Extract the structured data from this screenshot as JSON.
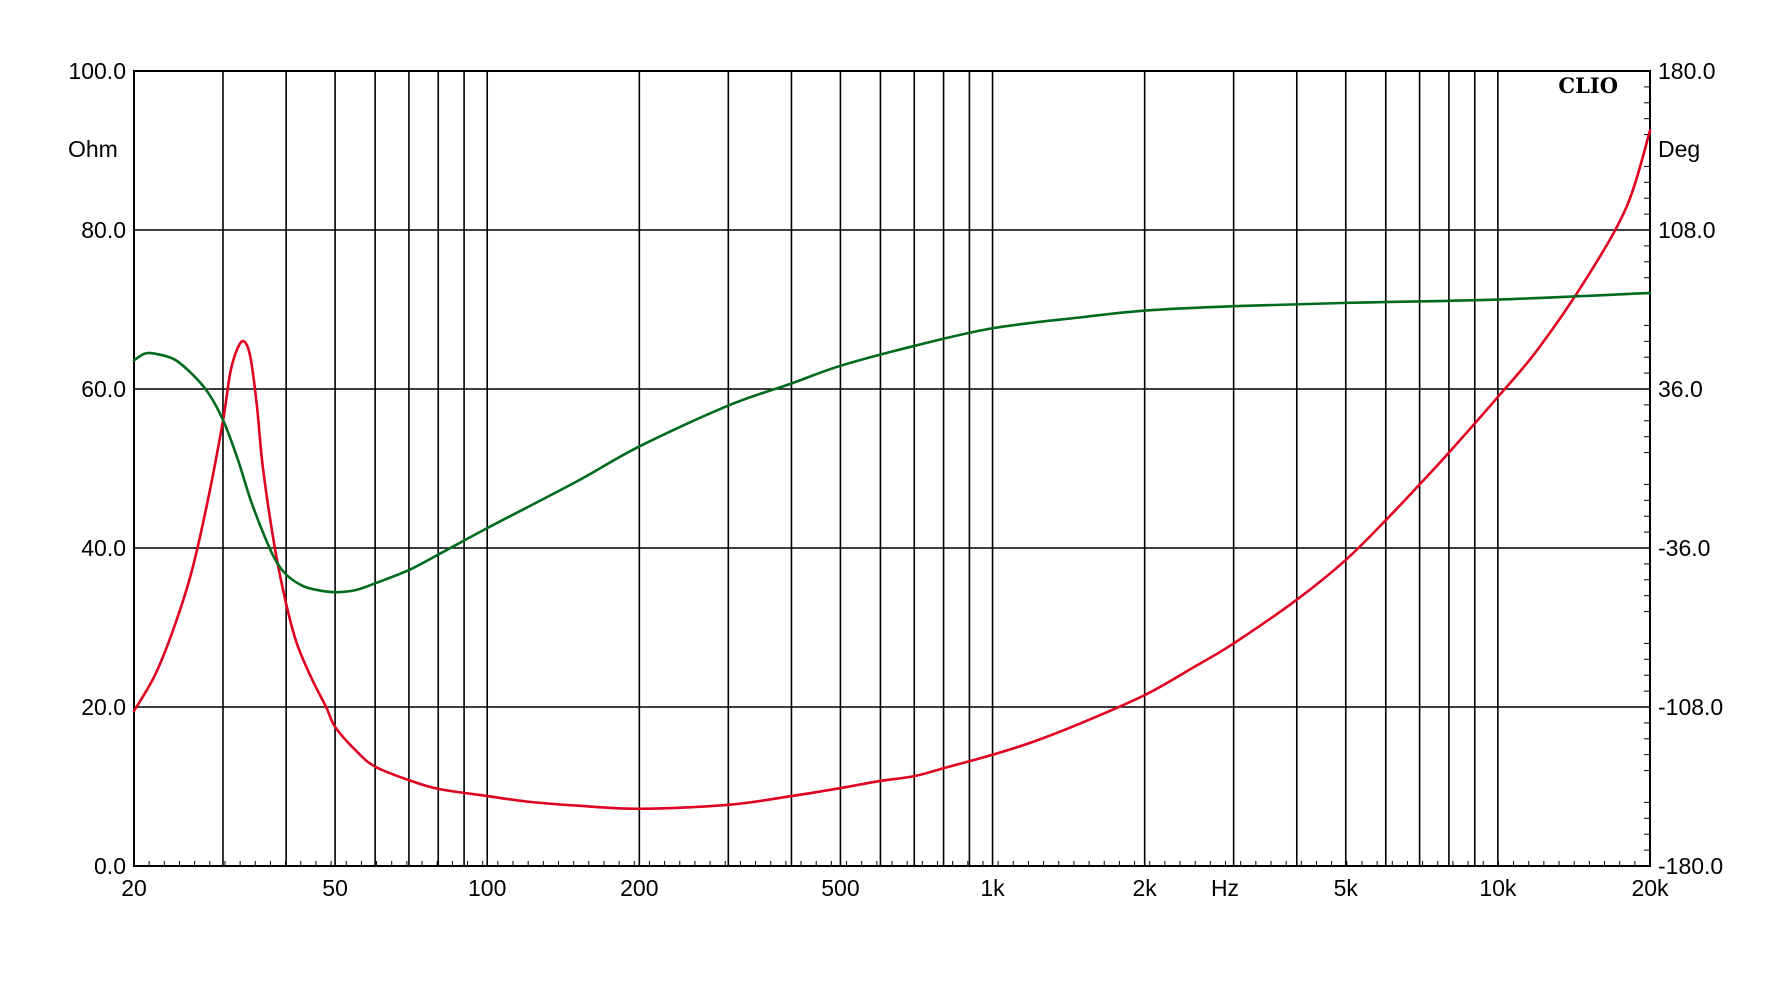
{
  "brand": {
    "text": "CLIO"
  },
  "axes": {
    "left_unit": "Ohm",
    "right_unit": "Deg",
    "x_unit": "Hz",
    "left_ticks": [
      "0.0",
      "20.0",
      "40.0",
      "60.0",
      "80.0",
      "100.0"
    ],
    "right_ticks": [
      "-180.0",
      "-108.0",
      "-36.0",
      "36.0",
      "108.0",
      "180.0"
    ],
    "x_ticks": [
      "20",
      "50",
      "100",
      "200",
      "500",
      "1k",
      "2k",
      "5k",
      "10k",
      "20k"
    ]
  },
  "colors": {
    "impedance": "#e00020",
    "phase": "#006a1e",
    "grid": "#000000"
  },
  "chart_data": {
    "type": "line",
    "x_scale": "log",
    "xlim": [
      20,
      20000
    ],
    "ylim_left": [
      0,
      100
    ],
    "ylim_right": [
      -180,
      180
    ],
    "grid": true,
    "series": [
      {
        "axis": "left",
        "color": "#e00020",
        "x": [
          20,
          22,
          24,
          26,
          28,
          30,
          31,
          32,
          33,
          34,
          35,
          36,
          38,
          40,
          42,
          45,
          48,
          50,
          55,
          60,
          70,
          80,
          100,
          120,
          150,
          200,
          300,
          400,
          500,
          600,
          700,
          800,
          1000,
          1200,
          1500,
          2000,
          2500,
          3000,
          4000,
          5000,
          6000,
          7000,
          8000,
          10000,
          12000,
          15000,
          18000,
          20000
        ],
        "y": [
          19.5,
          24,
          30,
          37,
          46,
          56,
          62,
          65,
          66,
          64,
          58,
          50,
          40,
          33,
          28,
          23.5,
          20,
          17.5,
          14.5,
          12.5,
          10.8,
          9.7,
          8.8,
          8.1,
          7.6,
          7.2,
          7.7,
          8.8,
          9.8,
          10.7,
          11.3,
          12.3,
          14.0,
          15.6,
          18.0,
          21.5,
          25.0,
          28.0,
          33.5,
          38.5,
          43.5,
          48.0,
          52.0,
          59.0,
          65.0,
          74.0,
          83.0,
          92.5
        ]
      },
      {
        "axis": "right",
        "color": "#006a1e",
        "x": [
          20,
          21,
          22,
          24,
          26,
          28,
          30,
          32,
          34,
          36,
          38,
          40,
          43,
          46,
          50,
          55,
          60,
          70,
          80,
          100,
          150,
          200,
          300,
          400,
          500,
          700,
          1000,
          1500,
          2000,
          3000,
          5000,
          10000,
          20000
        ],
        "y": [
          49,
          52,
          52,
          49.5,
          43,
          34.5,
          22,
          5,
          -14,
          -29,
          -41,
          -48,
          -53,
          -55,
          -56,
          -55,
          -52,
          -46,
          -39,
          -27,
          -6,
          10,
          28.5,
          38.5,
          46.5,
          55.5,
          63.5,
          68.5,
          71.5,
          73.5,
          75,
          76.5,
          79.5
        ]
      }
    ]
  }
}
